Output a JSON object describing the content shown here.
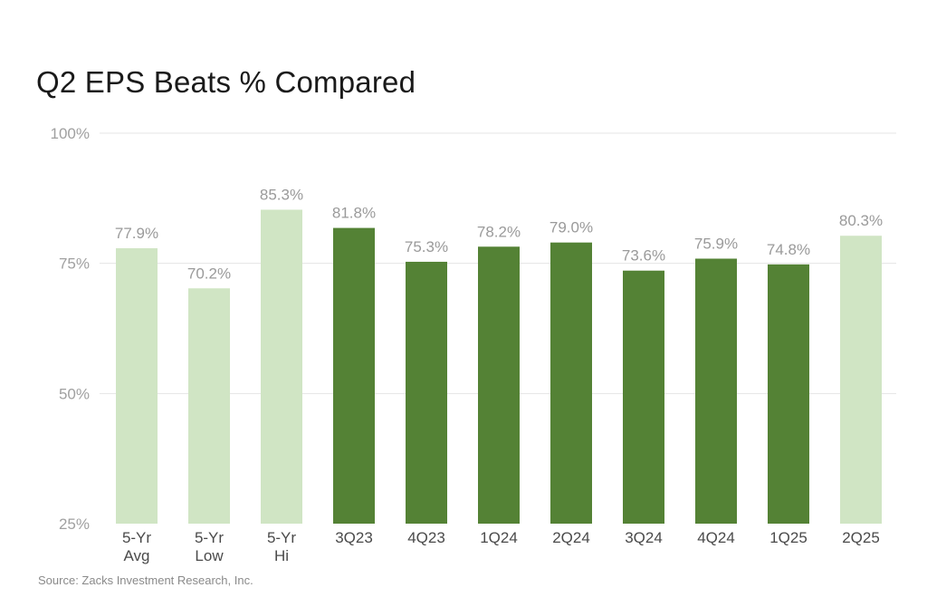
{
  "chart_data": {
    "type": "bar",
    "title": "Q2 EPS Beats % Compared",
    "source": "Source: Zacks Investment Research, Inc.",
    "categories": [
      [
        "5-Yr",
        "Avg"
      ],
      [
        "5-Yr",
        "Low"
      ],
      [
        "5-Yr",
        "Hi"
      ],
      [
        "3Q23"
      ],
      [
        "4Q23"
      ],
      [
        "1Q24"
      ],
      [
        "2Q24"
      ],
      [
        "3Q24"
      ],
      [
        "4Q24"
      ],
      [
        "1Q25"
      ],
      [
        "2Q25"
      ]
    ],
    "values": [
      77.9,
      70.2,
      85.3,
      81.8,
      75.3,
      78.2,
      79.0,
      73.6,
      75.9,
      74.8,
      80.3
    ],
    "value_labels": [
      "77.9%",
      "70.2%",
      "85.3%",
      "81.8%",
      "75.3%",
      "78.2%",
      "79.0%",
      "73.6%",
      "75.9%",
      "74.8%",
      "80.3%"
    ],
    "bar_colors": [
      "#d0e5c4",
      "#d0e5c4",
      "#d0e5c4",
      "#548235",
      "#548235",
      "#548235",
      "#548235",
      "#548235",
      "#548235",
      "#548235",
      "#d0e5c4"
    ],
    "ylim": [
      25,
      100
    ],
    "yticks": [
      25,
      50,
      75,
      100
    ],
    "ytick_labels": [
      "25%",
      "50%",
      "75%",
      "100%"
    ],
    "grid": true,
    "legend": false,
    "xlabel": "",
    "ylabel": ""
  }
}
